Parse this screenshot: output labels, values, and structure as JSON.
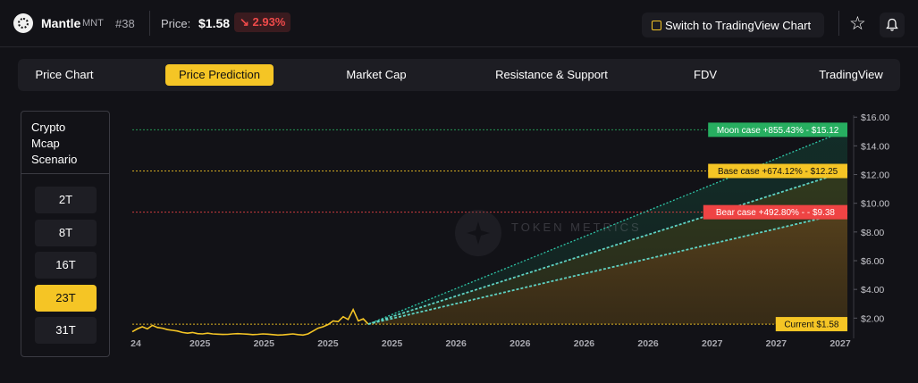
{
  "header": {
    "coin_name": "Mantle",
    "coin_symbol": "MNT",
    "rank": "#38",
    "price_label": "Price:",
    "price_value": "$1.58",
    "change": "↘ 2.93%",
    "tradingview_button": "Switch to TradingView Chart",
    "icons": [
      "mantle-logo-icon",
      "chart-icon",
      "star-icon",
      "bell-icon"
    ],
    "change_color": "#ef4a4a"
  },
  "tabs": [
    {
      "label": "Price Chart",
      "active": false
    },
    {
      "label": "Price Prediction",
      "active": true
    },
    {
      "label": "Market Cap",
      "active": false
    },
    {
      "label": "Resistance & Support",
      "active": false
    },
    {
      "label": "FDV",
      "active": false
    },
    {
      "label": "TradingView",
      "active": false
    }
  ],
  "scenario": {
    "title": "Crypto Mcap Scenario",
    "options": [
      {
        "label": "2T",
        "active": false
      },
      {
        "label": "8T",
        "active": false
      },
      {
        "label": "16T",
        "active": false
      },
      {
        "label": "23T",
        "active": true
      },
      {
        "label": "31T",
        "active": false
      }
    ]
  },
  "chart_data": {
    "type": "line",
    "watermark": "TOKEN METRICS",
    "y_ticks": [
      "$2.00",
      "$4.00",
      "$6.00",
      "$8.00",
      "$10.00",
      "$12.00",
      "$14.00",
      "$16.00"
    ],
    "x_ticks": [
      "24",
      "2025",
      "2025",
      "2025",
      "2025",
      "2026",
      "2026",
      "2026",
      "2026",
      "2027",
      "2027",
      "2027"
    ],
    "ylim": [
      0.9,
      16.2
    ],
    "history": [
      1.05,
      1.25,
      1.4,
      1.25,
      1.5,
      1.35,
      1.3,
      1.2,
      1.15,
      1.1,
      1.0,
      0.95,
      1.0,
      0.92,
      0.9,
      0.95,
      0.9,
      0.88,
      0.86,
      0.87,
      0.9,
      0.92,
      0.9,
      0.88,
      0.85,
      0.87,
      0.9,
      0.88,
      0.85,
      0.82,
      0.83,
      0.86,
      0.9,
      0.85,
      0.82,
      0.9,
      1.1,
      1.3,
      1.4,
      1.55,
      1.8,
      1.75,
      2.1,
      1.9,
      2.6,
      1.8,
      1.95,
      1.58
    ],
    "current": {
      "label": "Current $1.58",
      "value": 1.58,
      "color": "#f5c525"
    },
    "scenarios": [
      {
        "name": "moon",
        "label": "Moon case +855.43% - $15.12",
        "value": 15.12,
        "color": "#27ae60"
      },
      {
        "name": "base",
        "label": "Base case +674.12% - $12.25",
        "value": 12.25,
        "color": "#f5c525"
      },
      {
        "name": "bear",
        "label": "Bear case +492.80% - - $9.38",
        "value": 9.38,
        "color": "#ef4444"
      }
    ]
  }
}
